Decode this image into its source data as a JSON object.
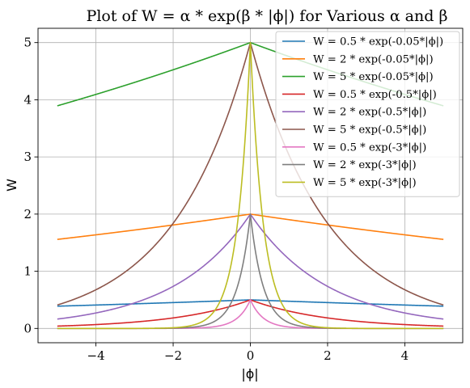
{
  "chart_data": {
    "type": "line",
    "title": "Plot of W = α * exp(β * |ϕ|) for Various α and β",
    "xlabel": "|ϕ|",
    "ylabel": "W",
    "xlim": [
      -5.5,
      5.5
    ],
    "ylim": [
      -0.25,
      5.25
    ],
    "x_range": [
      -5,
      5
    ],
    "x_ticks": [
      -4,
      -2,
      0,
      2,
      4
    ],
    "x_tick_labels": [
      "−4",
      "−2",
      "0",
      "2",
      "4"
    ],
    "y_ticks": [
      0,
      1,
      2,
      3,
      4,
      5
    ],
    "y_tick_labels": [
      "0",
      "1",
      "2",
      "3",
      "4",
      "5"
    ],
    "grid": true,
    "legend_position": "top-right",
    "series": [
      {
        "name": "W = 0.5 * exp(-0.05*|ϕ|)",
        "alpha": 0.5,
        "beta": -0.05,
        "color": "#1f77b4"
      },
      {
        "name": "W = 2 * exp(-0.05*|ϕ|)",
        "alpha": 2,
        "beta": -0.05,
        "color": "#ff7f0e"
      },
      {
        "name": "W = 5 * exp(-0.05*|ϕ|)",
        "alpha": 5,
        "beta": -0.05,
        "color": "#2ca02c"
      },
      {
        "name": "W = 0.5 * exp(-0.5*|ϕ|)",
        "alpha": 0.5,
        "beta": -0.5,
        "color": "#d62728"
      },
      {
        "name": "W = 2 * exp(-0.5*|ϕ|)",
        "alpha": 2,
        "beta": -0.5,
        "color": "#9467bd"
      },
      {
        "name": "W = 5 * exp(-0.5*|ϕ|)",
        "alpha": 5,
        "beta": -0.5,
        "color": "#8c564b"
      },
      {
        "name": "W = 0.5 * exp(-3*|ϕ|)",
        "alpha": 0.5,
        "beta": -3,
        "color": "#e377c2"
      },
      {
        "name": "W = 2 * exp(-3*|ϕ|)",
        "alpha": 2,
        "beta": -3,
        "color": "#7f7f7f"
      },
      {
        "name": "W = 5 * exp(-3*|ϕ|)",
        "alpha": 5,
        "beta": -3,
        "color": "#bcbd22"
      }
    ]
  }
}
